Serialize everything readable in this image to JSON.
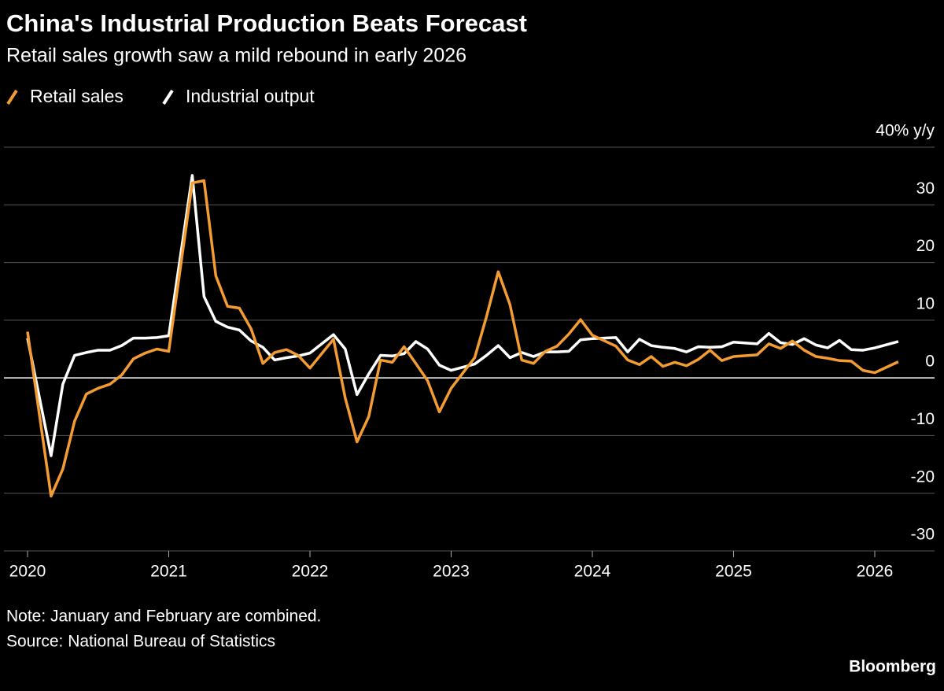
{
  "chart_data": {
    "type": "line",
    "title": "China's Industrial Production Beats Forecast",
    "subtitle": "Retail sales growth saw a mild rebound in early 2026",
    "note": "Note: January and February are combined.",
    "source": "Source: National Bureau of Statistics",
    "brand": "Bloomberg",
    "categories": [
      "2019-12",
      "2020-02",
      "2020-03",
      "2020-04",
      "2020-05",
      "2020-06",
      "2020-07",
      "2020-08",
      "2020-09",
      "2020-10",
      "2020-11",
      "2020-12",
      "2021-02",
      "2021-03",
      "2021-04",
      "2021-05",
      "2021-06",
      "2021-07",
      "2021-08",
      "2021-09",
      "2021-10",
      "2021-11",
      "2021-12",
      "2022-02",
      "2022-03",
      "2022-04",
      "2022-05",
      "2022-06",
      "2022-07",
      "2022-08",
      "2022-09",
      "2022-10",
      "2022-11",
      "2022-12",
      "2023-02",
      "2023-03",
      "2023-04",
      "2023-05",
      "2023-06",
      "2023-07",
      "2023-08",
      "2023-09",
      "2023-10",
      "2023-11",
      "2023-12",
      "2024-02",
      "2024-03",
      "2024-04",
      "2024-05",
      "2024-06",
      "2024-07",
      "2024-08",
      "2024-09",
      "2024-10",
      "2024-11",
      "2024-12",
      "2025-02",
      "2025-03",
      "2025-04",
      "2025-05",
      "2025-06",
      "2025-07",
      "2025-08",
      "2025-09",
      "2025-10",
      "2025-11",
      "2025-12",
      "2026-02"
    ],
    "series": [
      {
        "name": "Retail sales",
        "color": "#f39c31",
        "values": [
          8.0,
          -20.5,
          -15.8,
          -7.5,
          -2.8,
          -1.8,
          -1.1,
          0.5,
          3.3,
          4.3,
          5.0,
          4.6,
          33.8,
          34.2,
          17.7,
          12.4,
          12.1,
          8.5,
          2.5,
          4.4,
          4.9,
          3.9,
          1.7,
          6.7,
          -3.5,
          -11.1,
          -6.7,
          3.1,
          2.7,
          5.4,
          2.5,
          -0.5,
          -5.9,
          -1.8,
          3.5,
          10.6,
          18.4,
          12.7,
          3.1,
          2.5,
          4.6,
          5.5,
          7.6,
          10.1,
          7.4,
          5.5,
          3.1,
          2.3,
          3.7,
          2.0,
          2.7,
          2.1,
          3.2,
          4.8,
          3.0,
          3.7,
          4.0,
          5.9,
          5.1,
          6.4,
          4.8,
          3.7,
          3.4,
          3.0,
          2.9,
          1.3,
          0.9,
          2.8
        ]
      },
      {
        "name": "Industrial output",
        "color": "#ffffff",
        "values": [
          6.9,
          -13.5,
          -1.1,
          3.9,
          4.4,
          4.8,
          4.8,
          5.6,
          6.9,
          6.9,
          7.0,
          7.3,
          35.1,
          14.1,
          9.8,
          8.8,
          8.3,
          6.4,
          5.3,
          3.1,
          3.5,
          3.8,
          4.3,
          7.5,
          5.0,
          -2.9,
          0.7,
          3.9,
          3.8,
          4.2,
          6.3,
          5.0,
          2.2,
          1.3,
          2.4,
          3.9,
          5.6,
          3.5,
          4.4,
          3.7,
          4.5,
          4.5,
          4.6,
          6.6,
          6.8,
          7.0,
          4.5,
          6.7,
          5.6,
          5.3,
          5.1,
          4.5,
          5.4,
          5.3,
          5.4,
          6.2,
          5.9,
          7.7,
          6.1,
          5.8,
          6.8,
          5.7,
          5.2,
          6.5,
          4.9,
          4.8,
          5.2,
          6.3
        ]
      }
    ],
    "ylim": [
      -30,
      40
    ],
    "yticks": [
      -30,
      -20,
      -10,
      0,
      10,
      20,
      30,
      {
        "value": 40,
        "label": "40% y/y"
      }
    ],
    "xticks": [
      2020,
      2021,
      2022,
      2023,
      2024,
      2025,
      2026
    ],
    "grid": true
  }
}
